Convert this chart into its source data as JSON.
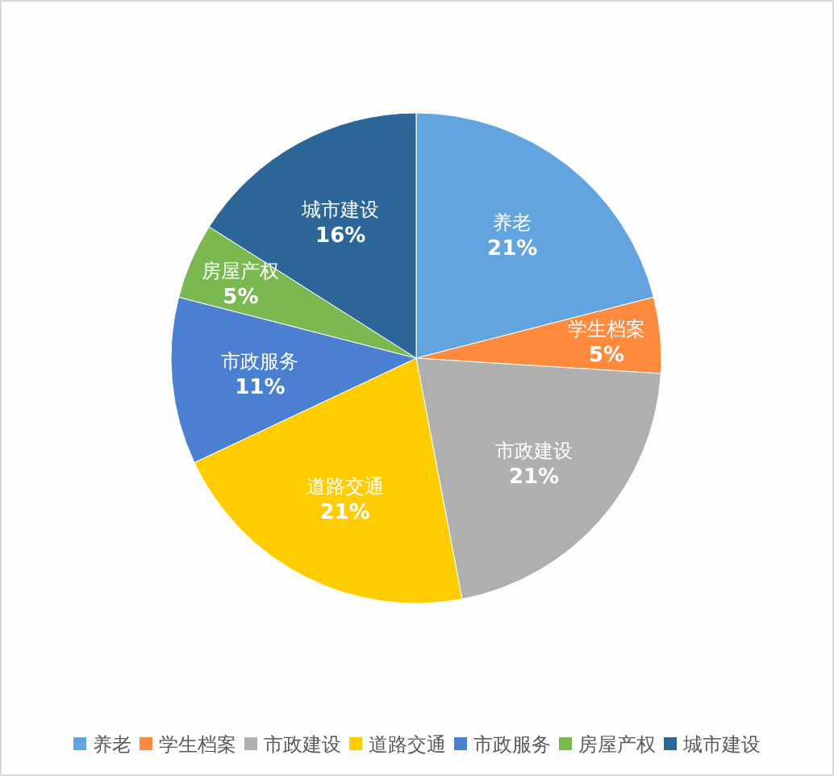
{
  "chart_data": {
    "type": "pie",
    "categories": [
      "养老",
      "学生档案",
      "市政建设",
      "道路交通",
      "市政服务",
      "房屋产权",
      "城市建设"
    ],
    "values": [
      21,
      5,
      21,
      21,
      11,
      5,
      16
    ],
    "colors": [
      "#62a4e0",
      "#fd8a3d",
      "#afafaf",
      "#ffcc00",
      "#4b7fd1",
      "#7ab850",
      "#2c6699"
    ],
    "value_labels": [
      "21%",
      "5%",
      "21%",
      "21%",
      "11%",
      "5%",
      "16%"
    ],
    "legend": "bottom"
  }
}
